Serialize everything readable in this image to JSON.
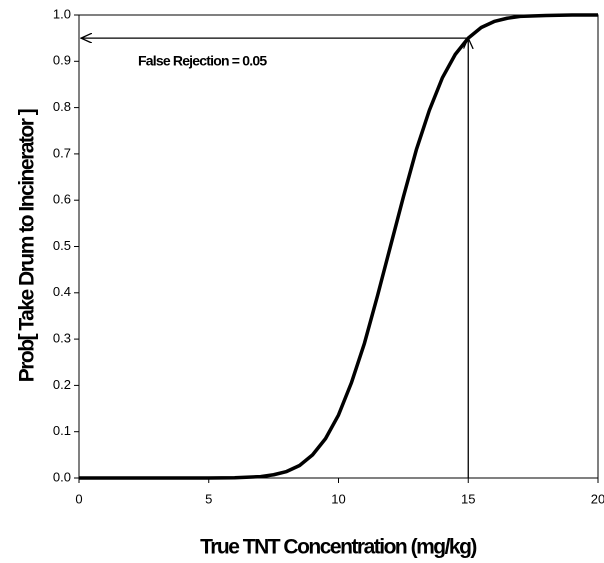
{
  "chart_data": {
    "type": "line",
    "xlabel": "True TNT Concentration (mg/kg)",
    "ylabel": "Prob[ Take Drum to Incinerator ]",
    "annotation": "False Rejection = 0.05",
    "reference_point": {
      "x": 15,
      "y": 0.95
    },
    "x": [
      0,
      1,
      2,
      3,
      4,
      5,
      6,
      7,
      7.5,
      8,
      8.5,
      9,
      9.5,
      10,
      10.5,
      11,
      11.5,
      12,
      12.5,
      13,
      13.5,
      14,
      14.5,
      15,
      15.5,
      16,
      16.5,
      17,
      18,
      19,
      20
    ],
    "values": [
      0,
      0,
      0,
      0,
      0,
      0.0001,
      0.0005,
      0.003,
      0.007,
      0.014,
      0.027,
      0.05,
      0.085,
      0.136,
      0.206,
      0.291,
      0.393,
      0.5,
      0.607,
      0.709,
      0.794,
      0.864,
      0.915,
      0.95,
      0.973,
      0.986,
      0.993,
      0.997,
      0.999,
      1,
      1
    ],
    "color": "#000000",
    "xlim": [
      0,
      20
    ],
    "ylim": [
      0,
      1
    ],
    "xticks": [
      0,
      5,
      10,
      15,
      20
    ],
    "yticks": [
      {
        "value": 0,
        "label": "0.0"
      },
      0.1,
      0.2,
      0.3,
      0.4,
      0.5,
      0.6,
      0.7,
      0.8,
      0.9,
      {
        "value": 1,
        "label": "1.0"
      }
    ]
  }
}
